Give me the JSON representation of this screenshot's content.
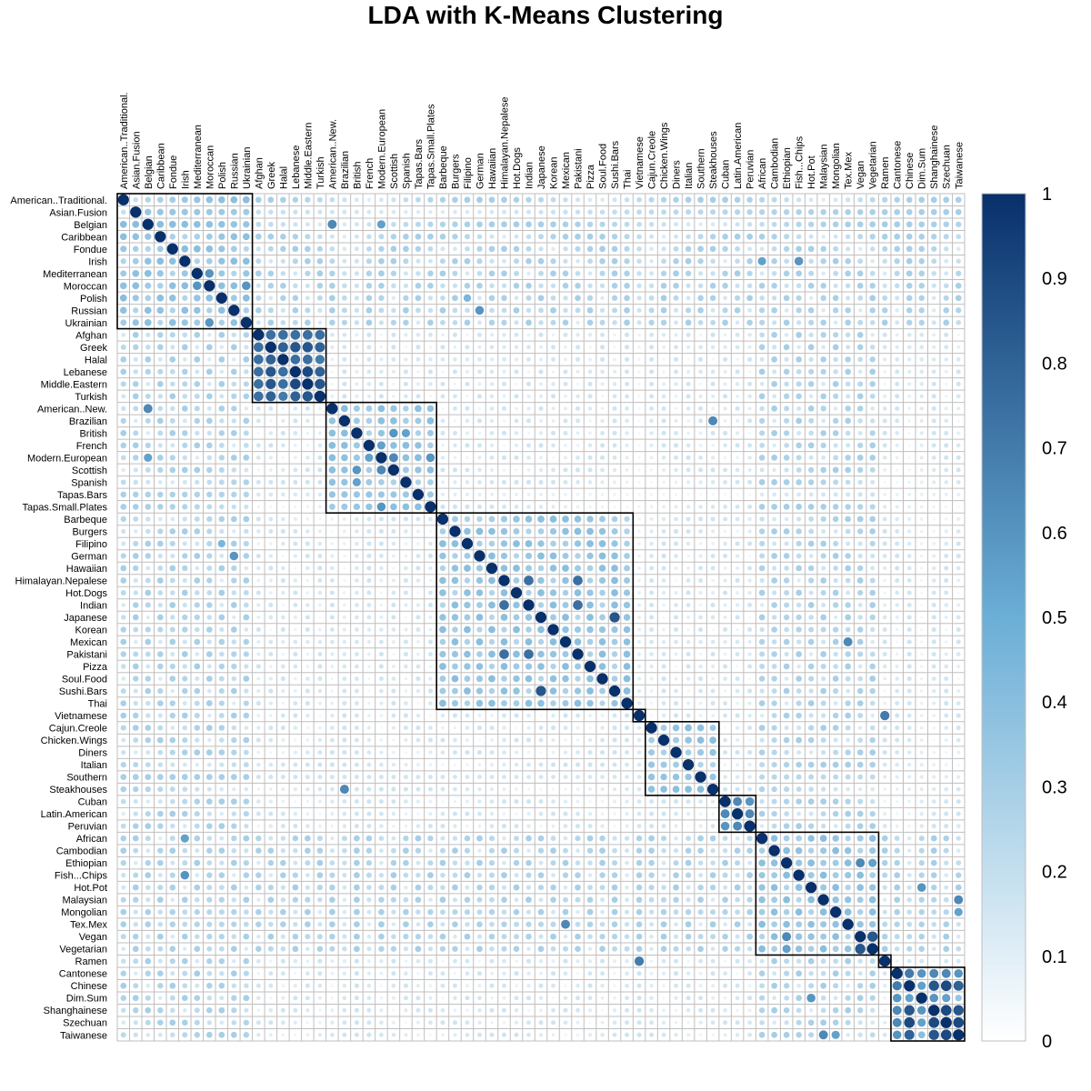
{
  "chart_data": {
    "type": "heatmap",
    "title": "LDA with K-Means Clustering",
    "labels": [
      "American..Traditional.",
      "Asian.Fusion",
      "Belgian",
      "Caribbean",
      "Fondue",
      "Irish",
      "Mediterranean",
      "Moroccan",
      "Polish",
      "Russian",
      "Ukrainian",
      "Afghan",
      "Greek",
      "Halal",
      "Lebanese",
      "Middle.Eastern",
      "Turkish",
      "American..New.",
      "Brazilian",
      "British",
      "French",
      "Modern.European",
      "Scottish",
      "Spanish",
      "Tapas.Bars",
      "Tapas.Small.Plates",
      "Barbeque",
      "Burgers",
      "Filipino",
      "German",
      "Hawaiian",
      "Himalayan.Nepalese",
      "Hot.Dogs",
      "Indian",
      "Japanese",
      "Korean",
      "Mexican",
      "Pakistani",
      "Pizza",
      "Soul.Food",
      "Sushi.Bars",
      "Thai",
      "Vietnamese",
      "Cajun.Creole",
      "Chicken.Wings",
      "Diners",
      "Italian",
      "Southern",
      "Steakhouses",
      "Cuban",
      "Latin.American",
      "Peruvian",
      "African",
      "Cambodian",
      "Ethiopian",
      "Fish...Chips",
      "Hot.Pot",
      "Malaysian",
      "Mongolian",
      "Tex.Mex",
      "Vegan",
      "Vegetarian",
      "Ramen",
      "Cantonese",
      "Chinese",
      "Dim.Sum",
      "Shanghainese",
      "Szechuan",
      "Taiwanese"
    ],
    "clusters": [
      [
        0,
        10
      ],
      [
        11,
        16
      ],
      [
        17,
        25
      ],
      [
        26,
        41
      ],
      [
        42,
        42
      ],
      [
        43,
        48
      ],
      [
        49,
        51
      ],
      [
        52,
        61
      ],
      [
        62,
        62
      ],
      [
        63,
        68
      ]
    ],
    "diagonal": 1.0,
    "strong_pairs": [
      [
        "American..Traditional.",
        "Asian.Fusion",
        0.2
      ],
      [
        "Belgian",
        "American..New.",
        0.65
      ],
      [
        "Belgian",
        "Modern.European",
        0.55
      ],
      [
        "Irish",
        "African",
        0.55
      ],
      [
        "Irish",
        "Fish...Chips",
        0.6
      ],
      [
        "Polish",
        "Filipino",
        0.45
      ],
      [
        "Russian",
        "German",
        0.6
      ],
      [
        "Mediterranean",
        "Moroccan",
        0.6
      ],
      [
        "Moroccan",
        "Ukrainian",
        0.6
      ],
      [
        "Afghan",
        "Greek",
        0.75
      ],
      [
        "Afghan",
        "Halal",
        0.75
      ],
      [
        "Afghan",
        "Lebanese",
        0.75
      ],
      [
        "Afghan",
        "Middle.Eastern",
        0.75
      ],
      [
        "Afghan",
        "Turkish",
        0.75
      ],
      [
        "Greek",
        "Halal",
        0.8
      ],
      [
        "Greek",
        "Lebanese",
        0.85
      ],
      [
        "Greek",
        "Middle.Eastern",
        0.85
      ],
      [
        "Greek",
        "Turkish",
        0.8
      ],
      [
        "Halal",
        "Lebanese",
        0.75
      ],
      [
        "Halal",
        "Middle.Eastern",
        0.75
      ],
      [
        "Halal",
        "Turkish",
        0.7
      ],
      [
        "Lebanese",
        "Middle.Eastern",
        0.9
      ],
      [
        "Lebanese",
        "Turkish",
        0.8
      ],
      [
        "Middle.Eastern",
        "Turkish",
        0.85
      ],
      [
        "Brazilian",
        "Steakhouses",
        0.65
      ],
      [
        "British",
        "Scottish",
        0.6
      ],
      [
        "British",
        "Spanish",
        0.55
      ],
      [
        "Modern.European",
        "Scottish",
        0.65
      ],
      [
        "Modern.European",
        "Tapas.Small.Plates",
        0.6
      ],
      [
        "Modern.European",
        "French",
        0.55
      ],
      [
        "Himalayan.Nepalese",
        "Indian",
        0.75
      ],
      [
        "Himalayan.Nepalese",
        "Pakistani",
        0.75
      ],
      [
        "Indian",
        "Pakistani",
        0.75
      ],
      [
        "Japanese",
        "Sushi.Bars",
        0.85
      ],
      [
        "Mexican",
        "Tex.Mex",
        0.65
      ],
      [
        "Vietnamese",
        "Ramen",
        0.7
      ],
      [
        "Cuban",
        "Latin.American",
        0.65
      ],
      [
        "Cuban",
        "Peruvian",
        0.6
      ],
      [
        "Latin.American",
        "Peruvian",
        0.65
      ],
      [
        "Ethiopian",
        "Vegan",
        0.65
      ],
      [
        "Ethiopian",
        "Vegetarian",
        0.55
      ],
      [
        "Vegan",
        "Vegetarian",
        0.85
      ],
      [
        "Hot.Pot",
        "Dim.Sum",
        0.6
      ],
      [
        "Malaysian",
        "Taiwanese",
        0.65
      ],
      [
        "Mongolian",
        "Taiwanese",
        0.55
      ],
      [
        "Cantonese",
        "Chinese",
        0.7
      ],
      [
        "Cantonese",
        "Dim.Sum",
        0.6
      ],
      [
        "Cantonese",
        "Shanghainese",
        0.65
      ],
      [
        "Cantonese",
        "Szechuan",
        0.65
      ],
      [
        "Cantonese",
        "Taiwanese",
        0.6
      ],
      [
        "Chinese",
        "Dim.Sum",
        0.55
      ],
      [
        "Chinese",
        "Shanghainese",
        0.85
      ],
      [
        "Chinese",
        "Szechuan",
        0.9
      ],
      [
        "Chinese",
        "Taiwanese",
        0.8
      ],
      [
        "Dim.Sum",
        "Shanghainese",
        0.6
      ],
      [
        "Dim.Sum",
        "Szechuan",
        0.55
      ],
      [
        "Shanghainese",
        "Szechuan",
        0.9
      ],
      [
        "Shanghainese",
        "Taiwanese",
        0.85
      ],
      [
        "Szechuan",
        "Taiwanese",
        0.9
      ]
    ],
    "colorbar": {
      "range": [
        0,
        1
      ],
      "ticks": [
        "0",
        "0.1",
        "0.2",
        "0.3",
        "0.4",
        "0.5",
        "0.6",
        "0.7",
        "0.8",
        "0.9",
        "1"
      ]
    },
    "colors": {
      "low": "#ffffff",
      "mid": "#6baed6",
      "high": "#08306b",
      "grid": "#bfbfbf",
      "box": "#000000"
    }
  }
}
